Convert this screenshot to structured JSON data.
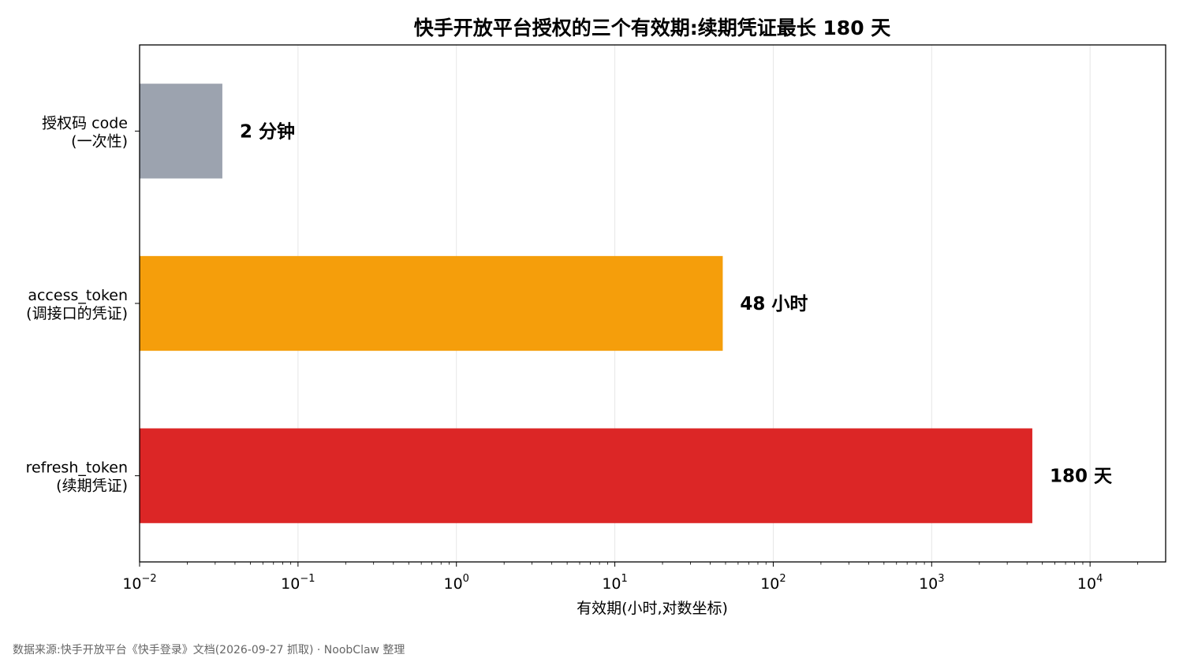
{
  "chart_data": {
    "type": "bar",
    "orientation": "horizontal",
    "title": "快手开放平台授权的三个有效期:续期凭证最长 180 天",
    "xlabel": "有效期(小时,对数坐标)",
    "ylabel": "",
    "x_scale": "log",
    "xlim": [
      0.01,
      30000
    ],
    "grid": true,
    "categories": [
      {
        "line1": "授权码 code",
        "line2": "(一次性)"
      },
      {
        "line1": "access_token",
        "line2": "(调接口的凭证)"
      },
      {
        "line1": "refresh_token",
        "line2": "(续期凭证)"
      }
    ],
    "values": [
      0.0333,
      48,
      4320
    ],
    "value_labels": [
      "2 分钟",
      "48 小时",
      "180 天"
    ],
    "colors": [
      "#9ca3af",
      "#f59e0b",
      "#dc2626"
    ],
    "x_ticks": [
      {
        "base": "10",
        "exp": "−2",
        "value": 0.01
      },
      {
        "base": "10",
        "exp": "−1",
        "value": 0.1
      },
      {
        "base": "10",
        "exp": "0",
        "value": 1
      },
      {
        "base": "10",
        "exp": "1",
        "value": 10
      },
      {
        "base": "10",
        "exp": "2",
        "value": 100
      },
      {
        "base": "10",
        "exp": "3",
        "value": 1000
      },
      {
        "base": "10",
        "exp": "4",
        "value": 10000
      }
    ]
  },
  "footnote": "数据来源:快手开放平台《快手登录》文档(2026-09-27 抓取) · NoobClaw 整理"
}
